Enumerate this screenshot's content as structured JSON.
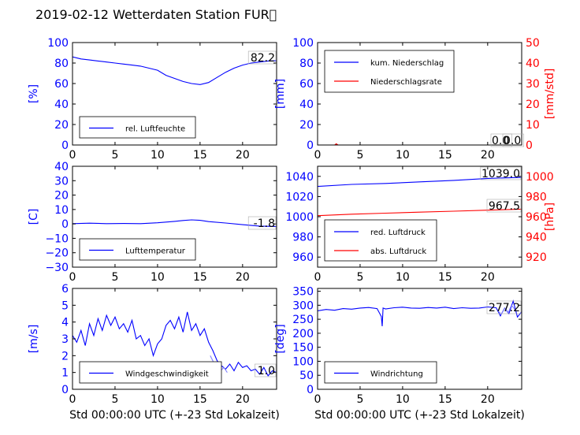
{
  "page": {
    "title": "2019-02-12 Wetterdaten Station FUR\u0000"
  },
  "colors": {
    "left_axis": "#0000ff",
    "right_axis": "#ff0000",
    "series_blue": "#0000ff",
    "series_red": "#ff0000",
    "series_violet": "#8080ff"
  },
  "chart_data": [
    {
      "type": "line",
      "name": "humidity",
      "xlim": [
        0,
        24
      ],
      "ylim": [
        0,
        100
      ],
      "xticks": [
        "0",
        "5",
        "10",
        "15",
        "20"
      ],
      "yticks": [
        "0",
        "20",
        "40",
        "60",
        "80",
        "100"
      ],
      "ylabel": "[%]",
      "xlabel": "",
      "legend_position": "bottom-left",
      "annotations": [
        "82.2"
      ],
      "series": [
        {
          "name": "rel. Luftfeuchte",
          "color": "#0000ff",
          "x": [
            0,
            1,
            2,
            3,
            4,
            5,
            6,
            7,
            8,
            9,
            10,
            11,
            12,
            13,
            14,
            15,
            16,
            17,
            18,
            19,
            20,
            21,
            22,
            23,
            24
          ],
          "y": [
            86,
            84,
            83,
            82,
            81,
            80,
            79,
            78,
            77,
            75,
            73,
            68,
            65,
            62,
            60,
            59,
            61,
            66,
            71,
            75,
            78,
            80,
            81,
            82,
            82.2
          ]
        }
      ]
    },
    {
      "type": "line",
      "name": "precipitation",
      "xlim": [
        0,
        24
      ],
      "ylim": [
        0,
        100
      ],
      "ylim_right": [
        0,
        50
      ],
      "xticks": [
        "0",
        "5",
        "10",
        "15",
        "20"
      ],
      "yticks": [
        "0",
        "20",
        "40",
        "60",
        "80",
        "100"
      ],
      "yticks_right": [
        "0",
        "10",
        "20",
        "30",
        "40",
        "50"
      ],
      "ylabel": "[mm]",
      "ylabel_right": "[mm/std]",
      "xlabel": "",
      "legend_position": "top-left",
      "annotations": [
        "0.0",
        "0.0"
      ],
      "series": [
        {
          "name": "kum. Niederschlag",
          "color": "#0000ff",
          "axis": "left",
          "x": [
            0,
            6,
            12,
            18,
            24
          ],
          "y": [
            0,
            0,
            0,
            0,
            0
          ]
        },
        {
          "name": "Niederschlagsrate",
          "color": "#ff0000",
          "axis": "right",
          "x": [
            0,
            2.0,
            2.2,
            2.4,
            6,
            12,
            18,
            24
          ],
          "y": [
            0,
            0,
            0.6,
            0,
            0,
            0,
            0,
            0
          ]
        }
      ]
    },
    {
      "type": "line",
      "name": "temperature",
      "xlim": [
        0,
        24
      ],
      "ylim": [
        -30,
        40
      ],
      "xticks": [
        "0",
        "5",
        "10",
        "15",
        "20"
      ],
      "yticks": [
        "−30",
        "−20",
        "−10",
        "0",
        "10",
        "20",
        "30",
        "40"
      ],
      "ylabel": "[C]",
      "xlabel": "",
      "legend_position": "bottom-left",
      "annotations": [
        "-1.8"
      ],
      "series": [
        {
          "name": "Lufttemperatur",
          "color": "#0000ff",
          "x": [
            0,
            2,
            4,
            6,
            8,
            10,
            12,
            13,
            14,
            15,
            16,
            18,
            20,
            22,
            24
          ],
          "y": [
            0.2,
            0.5,
            0.2,
            0.3,
            0.2,
            0.8,
            1.8,
            2.4,
            2.8,
            2.5,
            1.6,
            0.6,
            -0.5,
            -1.5,
            -1.8
          ]
        }
      ]
    },
    {
      "type": "line",
      "name": "pressure",
      "xlim": [
        0,
        24
      ],
      "ylim": [
        950,
        1050
      ],
      "ylim_right": [
        910,
        1010
      ],
      "xticks": [
        "0",
        "5",
        "10",
        "15",
        "20"
      ],
      "yticks": [
        "960",
        "980",
        "1000",
        "1020",
        "1040"
      ],
      "yticks_right": [
        "920",
        "940",
        "960",
        "980",
        "1000"
      ],
      "ylabel": "",
      "ylabel_right": "[hPa]",
      "xlabel": "",
      "legend_position": "bottom-left",
      "annotations": [
        "1039.0",
        "967.5"
      ],
      "series": [
        {
          "name": "red. Luftdruck",
          "color": "#0000ff",
          "axis": "left",
          "x": [
            0,
            4,
            8,
            12,
            16,
            20,
            24
          ],
          "y": [
            1030,
            1032,
            1033,
            1034.5,
            1036,
            1038,
            1039
          ]
        },
        {
          "name": "abs. Luftdruck",
          "color": "#ff0000",
          "axis": "right",
          "x": [
            0,
            4,
            8,
            12,
            16,
            20,
            24
          ],
          "y": [
            961,
            962.5,
            963.5,
            964.5,
            965.5,
            966.5,
            967.5
          ]
        }
      ]
    },
    {
      "type": "line",
      "name": "wind_speed",
      "xlim": [
        0,
        24
      ],
      "ylim": [
        0,
        6
      ],
      "xticks": [
        "0",
        "5",
        "10",
        "15",
        "20"
      ],
      "yticks": [
        "0",
        "1",
        "2",
        "3",
        "4",
        "5",
        "6"
      ],
      "ylabel": "[m/s]",
      "xlabel": "Std 00:00:00 UTC (+-23 Std Lokalzeit)",
      "legend_position": "bottom-left",
      "annotations": [
        "1.0"
      ],
      "series": [
        {
          "name": "Windgeschwindigkeit",
          "color": "#0000ff",
          "x": [
            0,
            0.5,
            1,
            1.5,
            2,
            2.5,
            3,
            3.5,
            4,
            4.5,
            5,
            5.5,
            6,
            6.5,
            7,
            7.5,
            8,
            8.5,
            9,
            9.5,
            10,
            10.5,
            11,
            11.5,
            12,
            12.5,
            13,
            13.5,
            14,
            14.5,
            15,
            15.5,
            16,
            16.5,
            17,
            17.5,
            18,
            18.5,
            19,
            19.5,
            20,
            20.5,
            21,
            21.5,
            22,
            22.5,
            23,
            23.5,
            24
          ],
          "y": [
            3.2,
            2.8,
            3.5,
            2.6,
            3.9,
            3.2,
            4.2,
            3.5,
            4.4,
            3.8,
            4.3,
            3.6,
            3.9,
            3.4,
            4.1,
            3.0,
            3.2,
            2.6,
            3.0,
            2.0,
            2.7,
            3.0,
            3.8,
            4.1,
            3.6,
            4.3,
            3.4,
            4.6,
            3.5,
            3.9,
            3.2,
            3.6,
            2.8,
            2.3,
            1.7,
            1.4,
            1.2,
            1.5,
            1.1,
            1.6,
            1.3,
            1.4,
            1.1,
            1.2,
            0.9,
            1.3,
            0.8,
            1.1,
            1.0
          ]
        },
        {
          "name": "",
          "color": "#8080ff",
          "x": [
            16.2,
            16.6,
            17.0,
            17.4,
            17.8,
            18.2
          ],
          "y": [
            2.0,
            1.6,
            1.5,
            1.1,
            1.3,
            1.0
          ]
        }
      ]
    },
    {
      "type": "line",
      "name": "wind_direction",
      "xlim": [
        0,
        24
      ],
      "ylim": [
        0,
        360
      ],
      "xticks": [
        "0",
        "5",
        "10",
        "15",
        "20"
      ],
      "yticks": [
        "0",
        "50",
        "100",
        "150",
        "200",
        "250",
        "300",
        "350"
      ],
      "ylabel": "[deg]",
      "xlabel": "Std 00:00:00 UTC (+-23 Std Lokalzeit)",
      "legend_position": "bottom-left",
      "annotations": [
        "277.2"
      ],
      "series": [
        {
          "name": "Windrichtung",
          "color": "#0000ff",
          "x": [
            0,
            1,
            2,
            3,
            4,
            5,
            6,
            7,
            7.5,
            7.6,
            7.7,
            8,
            9,
            10,
            11,
            12,
            13,
            14,
            15,
            16,
            17,
            18,
            19,
            20,
            21,
            21.5,
            22,
            22.5,
            23,
            23.5,
            24
          ],
          "y": [
            280,
            285,
            282,
            288,
            286,
            290,
            292,
            288,
            260,
            225,
            290,
            287,
            291,
            293,
            290,
            289,
            292,
            290,
            293,
            288,
            291,
            289,
            290,
            294,
            291,
            262,
            290,
            270,
            315,
            258,
            277
          ]
        },
        {
          "name": "",
          "color": "#8080ff",
          "x": [
            21.2,
            21.6,
            22.0,
            22.4,
            22.8,
            23.2
          ],
          "y": [
            280,
            268,
            290,
            272,
            300,
            285
          ]
        }
      ]
    }
  ]
}
